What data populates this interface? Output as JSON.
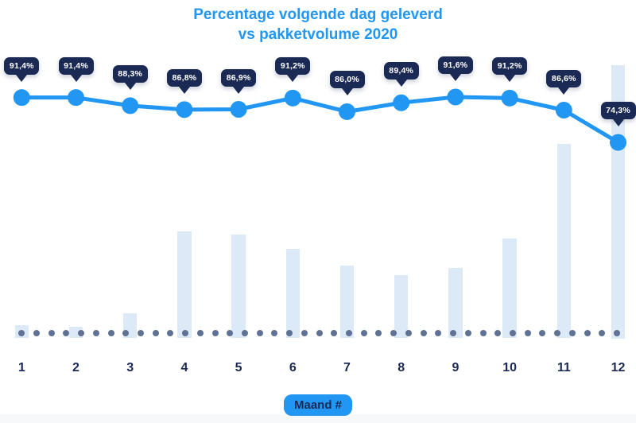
{
  "title": {
    "line1": "Percentage volgende dag geleverd",
    "line2": "vs pakketvolume 2020"
  },
  "x_axis": {
    "label": "Maand #",
    "ticks": [
      "1",
      "2",
      "3",
      "4",
      "5",
      "6",
      "7",
      "8",
      "9",
      "10",
      "11",
      "12"
    ]
  },
  "chart_data": {
    "type": "combo-line-bar",
    "title": "Percentage volgende dag geleverd vs pakketvolume 2020",
    "categories": [
      1,
      2,
      3,
      4,
      5,
      6,
      7,
      8,
      9,
      10,
      11,
      12
    ],
    "xlabel": "Maand #",
    "ylabel": "",
    "legend": "none",
    "grid": "dotted-baseline",
    "series": [
      {
        "name": "Percentage volgende dag geleverd",
        "type": "line",
        "unit": "%",
        "values": [
          91.4,
          91.4,
          88.3,
          86.8,
          86.9,
          91.2,
          86.0,
          89.4,
          91.6,
          91.2,
          86.6,
          74.3
        ],
        "labels": [
          "91,4%",
          "91,4%",
          "88,3%",
          "86,8%",
          "86,9%",
          "91,2%",
          "86,0%",
          "89,4%",
          "91,6%",
          "91,2%",
          "86,6%",
          "74,3%"
        ]
      },
      {
        "name": "Pakketvolume 2020",
        "type": "bar",
        "unit": "relative index (estimated from bar heights, max month = 100)",
        "values": [
          4.9,
          4.1,
          9.3,
          39.0,
          37.8,
          32.8,
          26.7,
          23.0,
          25.6,
          36.6,
          71.2,
          100
        ]
      }
    ]
  },
  "colors": {
    "accent_blue": "#2196F3",
    "navy": "#1B2A55",
    "bar_fill": "#DCE9F7",
    "baseline_dot": "#5F7194",
    "tooltip_text": "#FFFFFF",
    "background": "#FFFFFF",
    "bottom_strip": "#F7F8FA"
  }
}
